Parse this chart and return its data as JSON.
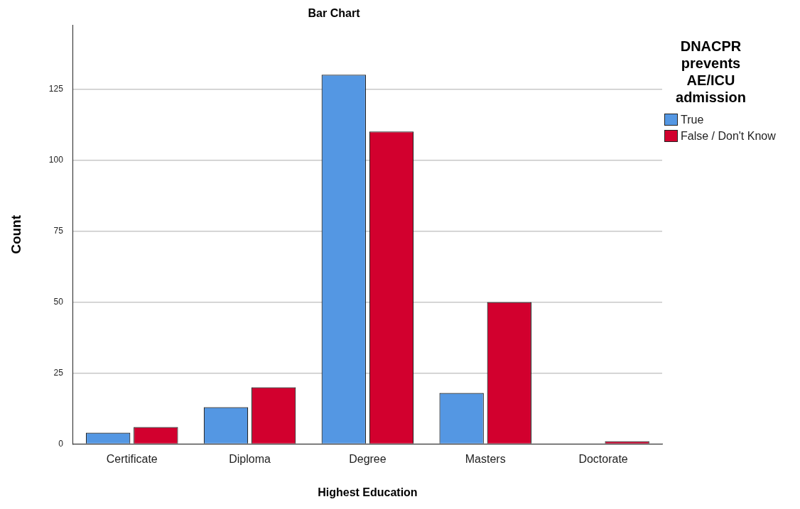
{
  "chart_data": {
    "type": "bar",
    "title": "Bar Chart",
    "xlabel": "Highest Education",
    "ylabel": "Count",
    "legend_title": "DNACPR prevents AE/ICU admission",
    "categories": [
      "Certificate",
      "Diploma",
      "Degree",
      "Masters",
      "Doctorate"
    ],
    "series": [
      {
        "name": "True",
        "color": "#5497e3",
        "values": [
          4,
          13,
          130,
          18,
          0
        ]
      },
      {
        "name": "False / Don't Know",
        "color": "#d2002e",
        "values": [
          6,
          20,
          110,
          50,
          1
        ]
      }
    ],
    "ylim": [
      0,
      147.5
    ],
    "yticks": [
      0,
      25,
      50,
      75,
      100,
      125
    ],
    "grid": "y",
    "legend": "top right"
  }
}
